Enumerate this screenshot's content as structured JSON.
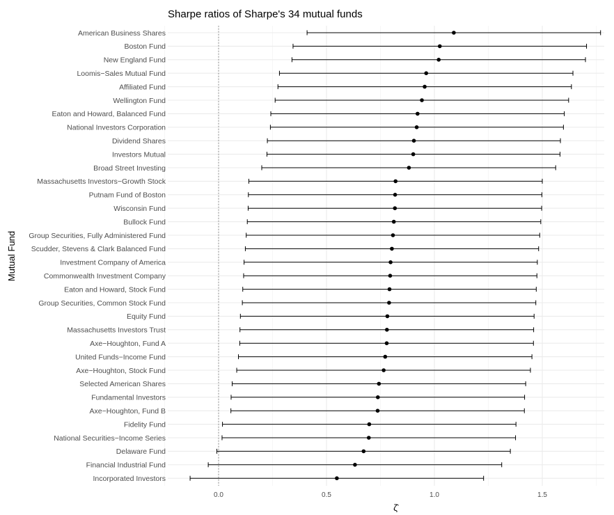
{
  "chart_data": {
    "type": "scatter",
    "subtype": "point-with-errorbars",
    "title": "Sharpe ratios of Sharpe's 34 mutual funds",
    "xlabel": "ζ̂",
    "ylabel": "Mutual Fund",
    "xlim": [
      -0.24,
      1.79
    ],
    "xticks": [
      0.0,
      0.5,
      1.0,
      1.5
    ],
    "xtick_labels": [
      "0.0",
      "0.5",
      "1.0",
      "1.5"
    ],
    "reference_line": {
      "x": 0,
      "style": "dotted"
    },
    "grid": true,
    "categories": [
      "American Business Shares",
      "Boston Fund",
      "New England Fund",
      "Loomis−Sales Mutual Fund",
      "Affiliated Fund",
      "Wellington Fund",
      "Eaton and Howard, Balanced Fund",
      "National Investors Corporation",
      "Dividend Shares",
      "Investors Mutual",
      "Broad Street Investing",
      "Massachusetts Investors−Growth Stock",
      "Putnam Fund of Boston",
      "Wisconsin Fund",
      "Bullock Fund",
      "Group Securities, Fully Administered Fund",
      "Scudder, Stevens & Clark Balanced Fund",
      "Investment Company of America",
      "Commonwealth Investment Company",
      "Eaton and Howard, Stock Fund",
      "Group Securities, Common Stock Fund",
      "Equity Fund",
      "Massachusetts Investors Trust",
      "Axe−Houghton, Fund A",
      "United Funds−Income Fund",
      "Axe−Houghton, Stock Fund",
      "Selected American Shares",
      "Fundamental Investors",
      "Axe−Houghton, Fund B",
      "Fidelity Fund",
      "National Securities−Income Series",
      "Delaware Fund",
      "Financial Industrial Fund",
      "Incorporated Investors"
    ],
    "values": [
      1.09,
      1.025,
      1.02,
      0.962,
      0.955,
      0.942,
      0.922,
      0.918,
      0.905,
      0.902,
      0.882,
      0.82,
      0.818,
      0.817,
      0.812,
      0.808,
      0.803,
      0.797,
      0.795,
      0.792,
      0.79,
      0.782,
      0.78,
      0.779,
      0.772,
      0.765,
      0.743,
      0.738,
      0.737,
      0.698,
      0.696,
      0.672,
      0.632,
      0.548
    ],
    "lower": [
      0.41,
      0.345,
      0.34,
      0.282,
      0.275,
      0.262,
      0.242,
      0.24,
      0.226,
      0.224,
      0.2,
      0.14,
      0.138,
      0.137,
      0.133,
      0.128,
      0.124,
      0.118,
      0.116,
      0.112,
      0.11,
      0.101,
      0.099,
      0.098,
      0.092,
      0.084,
      0.063,
      0.058,
      0.057,
      0.018,
      0.016,
      -0.008,
      -0.048,
      -0.132
    ],
    "upper": [
      1.77,
      1.705,
      1.7,
      1.642,
      1.635,
      1.622,
      1.602,
      1.598,
      1.584,
      1.582,
      1.562,
      1.5,
      1.498,
      1.497,
      1.493,
      1.488,
      1.483,
      1.477,
      1.475,
      1.472,
      1.47,
      1.462,
      1.46,
      1.459,
      1.452,
      1.445,
      1.423,
      1.418,
      1.417,
      1.378,
      1.376,
      1.352,
      1.312,
      1.228
    ]
  }
}
